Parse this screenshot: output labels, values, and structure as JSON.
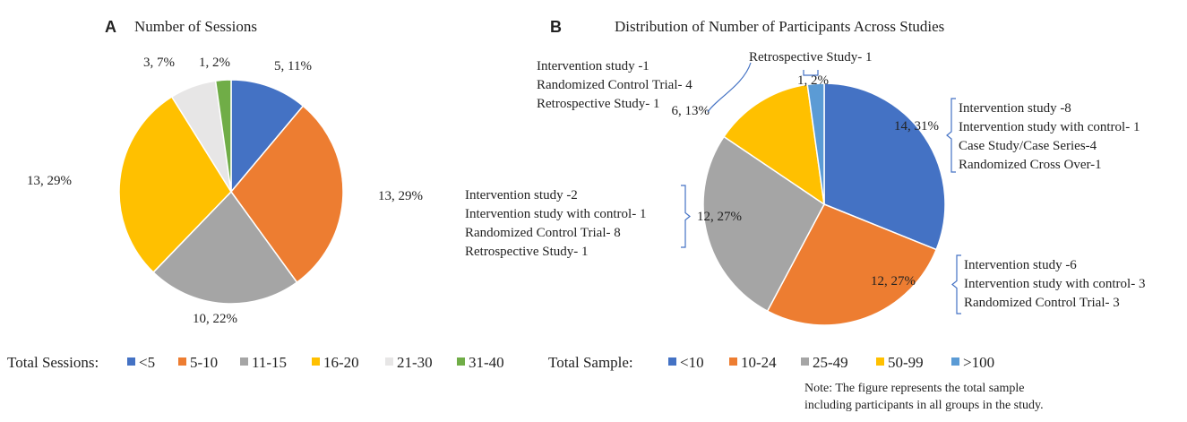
{
  "chart_data": [
    {
      "type": "pie",
      "panel_label": "A",
      "title": "Number of Sessions",
      "legend_title": "Total Sessions:",
      "categories": [
        "<5",
        "5-10",
        "11-15",
        "16-20",
        "21-30",
        "31-40"
      ],
      "values": [
        5,
        13,
        10,
        13,
        3,
        1
      ],
      "percents": [
        "11%",
        "29%",
        "22%",
        "29%",
        "7%",
        "2%"
      ],
      "data_labels": [
        "5, 11%",
        "13, 29%",
        "10, 22%",
        "13, 29%",
        "3, 7%",
        "1, 2%"
      ],
      "colors": [
        "#4472C4",
        "#ED7D31",
        "#A5A5A5",
        "#FFC000",
        "#E7E6E6",
        "#70AD47"
      ]
    },
    {
      "type": "pie",
      "panel_label": "B",
      "title": "Distribution of Number of Participants Across Studies",
      "legend_title": "Total Sample:",
      "categories": [
        "<10",
        "10-24",
        "25-49",
        "50-99",
        ">100"
      ],
      "values": [
        14,
        12,
        12,
        6,
        1
      ],
      "percents": [
        "31%",
        "27%",
        "27%",
        "13%",
        "2%"
      ],
      "data_labels": [
        "14, 31%",
        "12, 27%",
        "12, 27%",
        "6, 13%",
        "1, 2%"
      ],
      "colors": [
        "#4472C4",
        "#ED7D31",
        "#A5A5A5",
        "#FFC000",
        "#5B9BD5"
      ],
      "annotations": [
        [
          "Intervention study -8",
          "Intervention study with control- 1",
          "Case Study/Case Series-4",
          "Randomized Cross Over-1"
        ],
        [
          "Intervention study -6",
          "Intervention study with control- 3",
          "Randomized Control Trial- 3"
        ],
        [
          "Intervention study -2",
          "Intervention study with control- 1",
          "Randomized Control Trial- 8",
          "Retrospective Study- 1"
        ],
        [
          "Intervention study -1",
          "Randomized Control Trial- 4",
          "Retrospective Study- 1"
        ],
        [
          "Retrospective Study- 1"
        ]
      ],
      "note": [
        "Note: The figure represents the total sample",
        "including participants in all groups in the study."
      ]
    }
  ]
}
